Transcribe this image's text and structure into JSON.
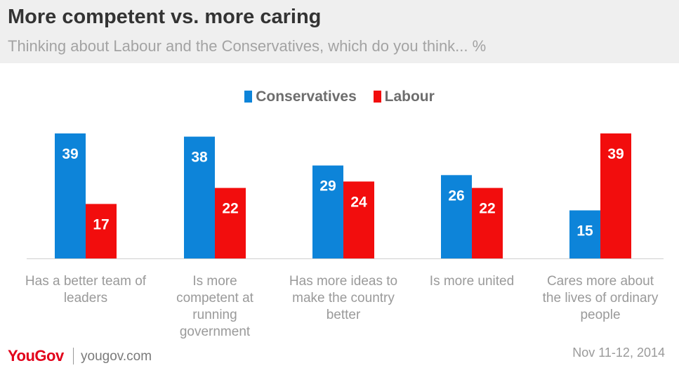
{
  "header": {
    "title": "More competent vs. more caring",
    "subtitle": "Thinking about Labour and the Conservatives, which do you think... %"
  },
  "footer": {
    "brand": "YouGov",
    "website": "yougov.com",
    "date": "Nov 11-12, 2014"
  },
  "colors": {
    "conservatives": "#0d84d9",
    "labour": "#f20d0d"
  },
  "chart_data": {
    "type": "bar",
    "title": "More competent vs. more caring",
    "subtitle": "Thinking about Labour and the Conservatives, which do you think... %",
    "categories": [
      "Has a better team of leaders",
      "Is more competent at running government",
      "Has more ideas to make the country better",
      "Is more united",
      "Cares more about the lives of ordinary people"
    ],
    "series": [
      {
        "name": "Conservatives",
        "values": [
          39,
          38,
          29,
          26,
          15
        ]
      },
      {
        "name": "Labour",
        "values": [
          17,
          22,
          24,
          22,
          39
        ]
      }
    ],
    "ylim": [
      0,
      39
    ],
    "legend_position": "top-center",
    "grid": false
  }
}
